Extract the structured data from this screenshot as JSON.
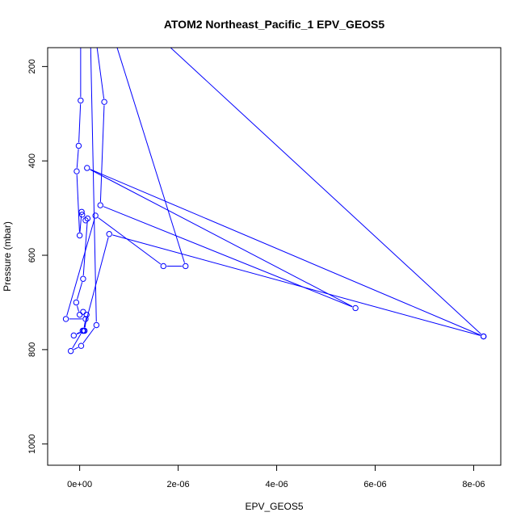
{
  "chart_data": {
    "type": "line",
    "title": "ATOM2 Northeast_Pacific_1 EPV_GEOS5",
    "xlabel": "EPV_GEOS5",
    "ylabel": "Pressure (mbar)",
    "xlim": [
      -6.5e-07,
      8.55e-06
    ],
    "ylim": [
      1045,
      160
    ],
    "y_reversed": true,
    "grid": false,
    "line_color": "#0000ff",
    "marker": "open-circle",
    "x_ticks": [
      {
        "value": 0,
        "label": "0e+00"
      },
      {
        "value": 2e-06,
        "label": "2e-06"
      },
      {
        "value": 4e-06,
        "label": "4e-06"
      },
      {
        "value": 6e-06,
        "label": "6e-06"
      },
      {
        "value": 8e-06,
        "label": "8e-06"
      }
    ],
    "y_ticks": [
      {
        "value": 200,
        "label": "200"
      },
      {
        "value": 400,
        "label": "400"
      },
      {
        "value": 600,
        "label": "600"
      },
      {
        "value": 800,
        "label": "800"
      },
      {
        "value": 1000,
        "label": "1000"
      }
    ],
    "series": [
      {
        "points": [
          {
            "x": 2e-08,
            "y": 40
          },
          {
            "x": 2e-08,
            "y": 272
          },
          {
            "x": -2e-08,
            "y": 368
          },
          {
            "x": -6e-08,
            "y": 422
          },
          {
            "x": 0.0,
            "y": 558
          },
          {
            "x": 4e-08,
            "y": 508
          },
          {
            "x": 5e-08,
            "y": 514
          },
          {
            "x": 1.2e-07,
            "y": 526
          },
          {
            "x": 1.6e-07,
            "y": 522
          },
          {
            "x": 7e-08,
            "y": 650
          },
          {
            "x": -7e-08,
            "y": 700
          },
          {
            "x": 0.0,
            "y": 726
          },
          {
            "x": 7e-08,
            "y": 720
          },
          {
            "x": 1.4e-07,
            "y": 726
          },
          {
            "x": 1e-07,
            "y": 760
          },
          {
            "x": -1.2e-07,
            "y": 770
          },
          {
            "x": 6e-08,
            "y": 760
          },
          {
            "x": -1.8e-07,
            "y": 803
          },
          {
            "x": 3e-08,
            "y": 792
          },
          {
            "x": 3.4e-07,
            "y": 748
          },
          {
            "x": 2e-07,
            "y": 40
          },
          {
            "x": 5e-07,
            "y": 275
          },
          {
            "x": 4.2e-07,
            "y": 494
          },
          {
            "x": 5.6e-06,
            "y": 712
          },
          {
            "x": 1.5e-07,
            "y": 415
          },
          {
            "x": 8.2e-06,
            "y": 772
          },
          {
            "x": 6e-07,
            "y": 555
          },
          {
            "x": 8e-08,
            "y": 760
          },
          {
            "x": 1.2e-07,
            "y": 735
          },
          {
            "x": -2.8e-07,
            "y": 735
          },
          {
            "x": 3.2e-07,
            "y": 516
          },
          {
            "x": 1.7e-06,
            "y": 623
          },
          {
            "x": 2.15e-06,
            "y": 623
          },
          {
            "x": 4e-07,
            "y": 40
          },
          {
            "x": 6e-07,
            "y": 40
          },
          {
            "x": 8.2e-06,
            "y": 772
          }
        ]
      }
    ]
  }
}
